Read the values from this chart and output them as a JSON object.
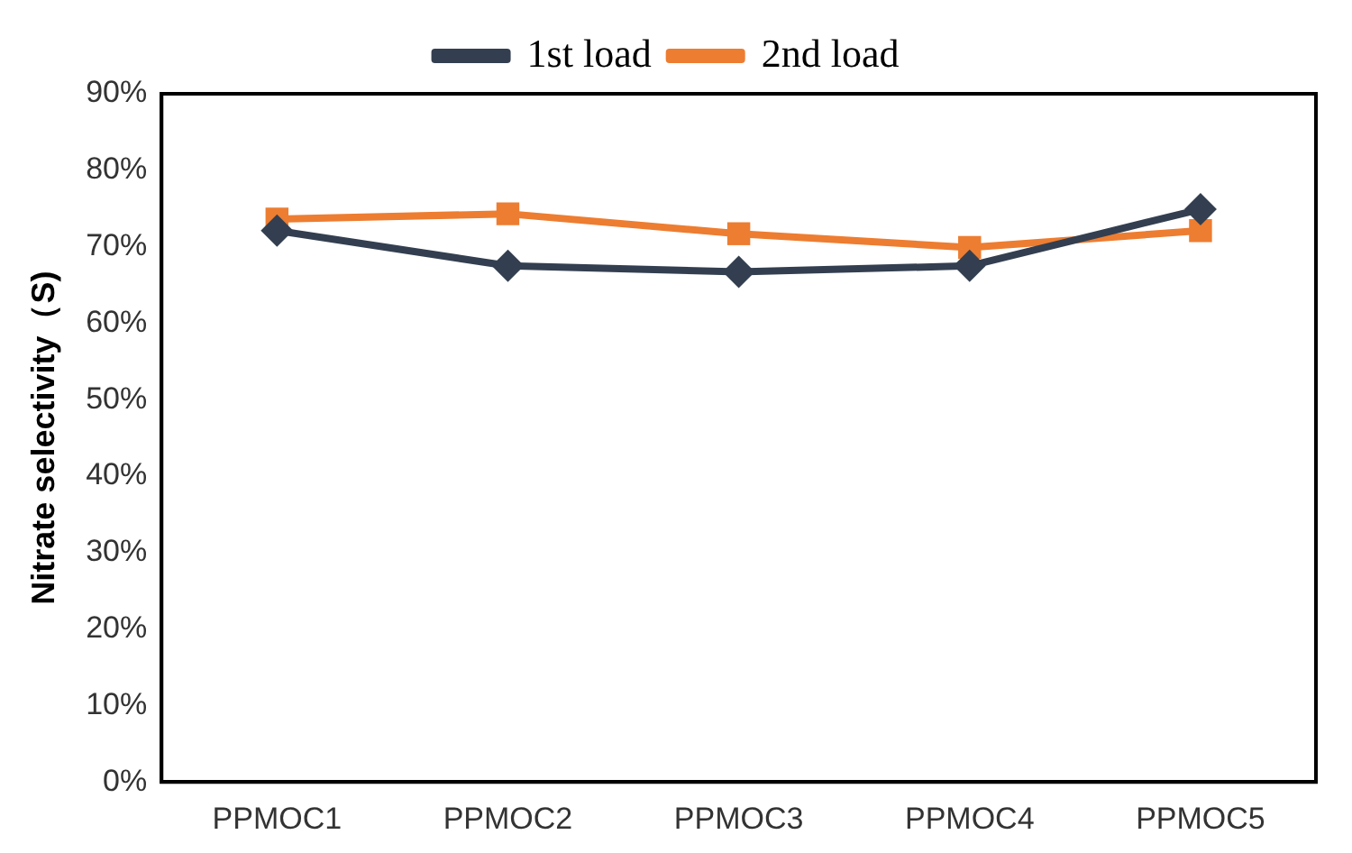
{
  "chart_data": {
    "type": "line",
    "ylabel": "Nitrate selectivity（S)",
    "categories": [
      "PPMOC1",
      "PPMOC2",
      "PPMOC3",
      "PPMOC4",
      "PPMOC5"
    ],
    "series": [
      {
        "name": "1st load",
        "color": "#333f50",
        "marker": "diamond",
        "values": [
          72.1,
          67.5,
          66.7,
          67.5,
          74.9
        ]
      },
      {
        "name": "2nd load",
        "color": "#ed7d31",
        "marker": "square",
        "values": [
          73.6,
          74.3,
          71.7,
          69.9,
          72.1
        ]
      }
    ],
    "ylim": [
      0,
      90
    ],
    "yticks": [
      {
        "value": 0,
        "label": "0%"
      },
      {
        "value": 10,
        "label": "10%"
      },
      {
        "value": 20,
        "label": "20%"
      },
      {
        "value": 30,
        "label": "30%"
      },
      {
        "value": 40,
        "label": "40%"
      },
      {
        "value": 50,
        "label": "50%"
      },
      {
        "value": 60,
        "label": "60%"
      },
      {
        "value": 70,
        "label": "70%"
      },
      {
        "value": 80,
        "label": "80%"
      },
      {
        "value": 90,
        "label": "90%"
      }
    ],
    "grid": false,
    "legend": "top",
    "line_style": "solid"
  }
}
